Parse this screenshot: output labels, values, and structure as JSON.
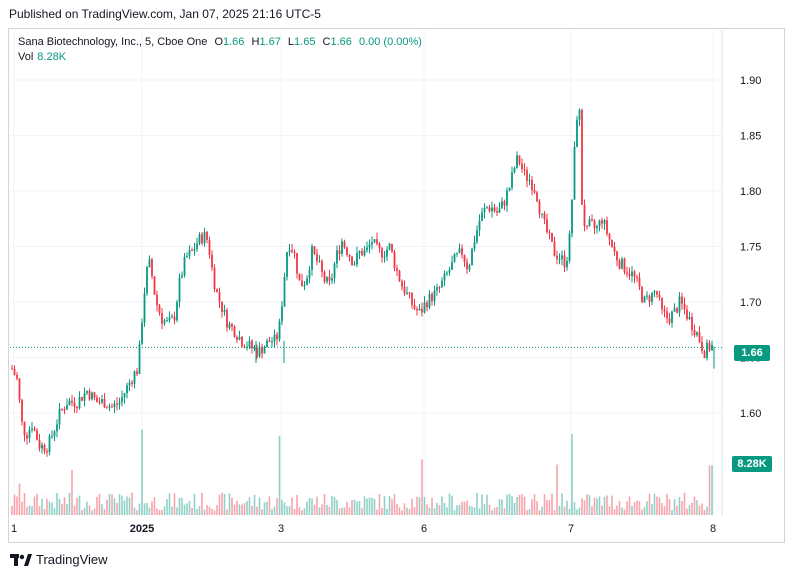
{
  "published": "Published on TradingView.com, Jan 07, 2025 21:16 UTC-5",
  "legend": {
    "symbol": "Sana Biotechnology, Inc., 5, Cboe One",
    "o_label": "O",
    "o": "1.66",
    "h_label": "H",
    "h": "1.67",
    "l_label": "L",
    "l": "1.65",
    "c_label": "C",
    "c": "1.66",
    "change": "0.00 (0.00%)",
    "vol_label": "Vol",
    "vol": "8.28K"
  },
  "price_tag": "1.66",
  "volume_tag": "8.28K",
  "footer": "TradingView",
  "colors": {
    "up": "#089981",
    "down": "#f23645",
    "grid": "#f0f3fa",
    "axis_text": "#131722"
  },
  "chart_data": {
    "type": "candlestick",
    "x_tick_labels": [
      "1",
      "2025",
      "3",
      "6",
      "7",
      "8"
    ],
    "y_tick_labels": [
      "1.60",
      "1.65",
      "1.70",
      "1.75",
      "1.80",
      "1.85",
      "1.90"
    ],
    "ylim": [
      1.545,
      1.935
    ],
    "last_price": 1.66,
    "close_path": [
      {
        "x": 0,
        "c": 1.64
      },
      {
        "x": 5,
        "c": 1.63
      },
      {
        "x": 10,
        "c": 1.59
      },
      {
        "x": 14,
        "c": 1.58
      },
      {
        "x": 20,
        "c": 1.59
      },
      {
        "x": 28,
        "c": 1.57
      },
      {
        "x": 36,
        "c": 1.57
      },
      {
        "x": 42,
        "c": 1.585
      },
      {
        "x": 48,
        "c": 1.6
      },
      {
        "x": 55,
        "c": 1.61
      },
      {
        "x": 65,
        "c": 1.61
      },
      {
        "x": 75,
        "c": 1.62
      },
      {
        "x": 85,
        "c": 1.61
      },
      {
        "x": 93,
        "c": 1.61
      },
      {
        "x": 100,
        "c": 1.605
      },
      {
        "x": 108,
        "c": 1.61
      },
      {
        "x": 116,
        "c": 1.625
      },
      {
        "x": 122,
        "c": 1.635
      },
      {
        "x": 126,
        "c": 1.64
      },
      {
        "x": 130,
        "c": 1.685
      },
      {
        "x": 134,
        "c": 1.725
      },
      {
        "x": 138,
        "c": 1.735
      },
      {
        "x": 144,
        "c": 1.7
      },
      {
        "x": 150,
        "c": 1.685
      },
      {
        "x": 156,
        "c": 1.68
      },
      {
        "x": 162,
        "c": 1.685
      },
      {
        "x": 168,
        "c": 1.72
      },
      {
        "x": 174,
        "c": 1.74
      },
      {
        "x": 180,
        "c": 1.745
      },
      {
        "x": 186,
        "c": 1.755
      },
      {
        "x": 192,
        "c": 1.76
      },
      {
        "x": 196,
        "c": 1.755
      },
      {
        "x": 200,
        "c": 1.73
      },
      {
        "x": 204,
        "c": 1.71
      },
      {
        "x": 210,
        "c": 1.695
      },
      {
        "x": 216,
        "c": 1.68
      },
      {
        "x": 222,
        "c": 1.675
      },
      {
        "x": 230,
        "c": 1.665
      },
      {
        "x": 238,
        "c": 1.66
      },
      {
        "x": 246,
        "c": 1.655
      },
      {
        "x": 252,
        "c": 1.66
      },
      {
        "x": 258,
        "c": 1.665
      },
      {
        "x": 264,
        "c": 1.665
      },
      {
        "x": 268,
        "c": 1.68
      },
      {
        "x": 272,
        "c": 1.72
      },
      {
        "x": 276,
        "c": 1.755
      },
      {
        "x": 282,
        "c": 1.745
      },
      {
        "x": 288,
        "c": 1.715
      },
      {
        "x": 294,
        "c": 1.72
      },
      {
        "x": 300,
        "c": 1.745
      },
      {
        "x": 306,
        "c": 1.735
      },
      {
        "x": 312,
        "c": 1.72
      },
      {
        "x": 318,
        "c": 1.715
      },
      {
        "x": 324,
        "c": 1.74
      },
      {
        "x": 330,
        "c": 1.755
      },
      {
        "x": 336,
        "c": 1.745
      },
      {
        "x": 342,
        "c": 1.735
      },
      {
        "x": 348,
        "c": 1.745
      },
      {
        "x": 354,
        "c": 1.745
      },
      {
        "x": 360,
        "c": 1.755
      },
      {
        "x": 366,
        "c": 1.745
      },
      {
        "x": 372,
        "c": 1.745
      },
      {
        "x": 378,
        "c": 1.75
      },
      {
        "x": 384,
        "c": 1.73
      },
      {
        "x": 390,
        "c": 1.715
      },
      {
        "x": 396,
        "c": 1.705
      },
      {
        "x": 402,
        "c": 1.695
      },
      {
        "x": 408,
        "c": 1.69
      },
      {
        "x": 414,
        "c": 1.7
      },
      {
        "x": 420,
        "c": 1.705
      },
      {
        "x": 426,
        "c": 1.71
      },
      {
        "x": 432,
        "c": 1.72
      },
      {
        "x": 438,
        "c": 1.73
      },
      {
        "x": 444,
        "c": 1.74
      },
      {
        "x": 450,
        "c": 1.745
      },
      {
        "x": 456,
        "c": 1.73
      },
      {
        "x": 462,
        "c": 1.755
      },
      {
        "x": 468,
        "c": 1.775
      },
      {
        "x": 474,
        "c": 1.785
      },
      {
        "x": 480,
        "c": 1.785
      },
      {
        "x": 486,
        "c": 1.78
      },
      {
        "x": 492,
        "c": 1.79
      },
      {
        "x": 498,
        "c": 1.805
      },
      {
        "x": 502,
        "c": 1.82
      },
      {
        "x": 506,
        "c": 1.83
      },
      {
        "x": 512,
        "c": 1.815
      },
      {
        "x": 518,
        "c": 1.81
      },
      {
        "x": 524,
        "c": 1.8
      },
      {
        "x": 530,
        "c": 1.775
      },
      {
        "x": 536,
        "c": 1.76
      },
      {
        "x": 542,
        "c": 1.745
      },
      {
        "x": 548,
        "c": 1.74
      },
      {
        "x": 554,
        "c": 1.735
      },
      {
        "x": 558,
        "c": 1.76
      },
      {
        "x": 561,
        "c": 1.81
      },
      {
        "x": 564,
        "c": 1.86
      },
      {
        "x": 567,
        "c": 1.885
      },
      {
        "x": 570,
        "c": 1.79
      },
      {
        "x": 574,
        "c": 1.76
      },
      {
        "x": 578,
        "c": 1.77
      },
      {
        "x": 584,
        "c": 1.765
      },
      {
        "x": 590,
        "c": 1.775
      },
      {
        "x": 596,
        "c": 1.76
      },
      {
        "x": 602,
        "c": 1.745
      },
      {
        "x": 608,
        "c": 1.735
      },
      {
        "x": 614,
        "c": 1.73
      },
      {
        "x": 620,
        "c": 1.725
      },
      {
        "x": 626,
        "c": 1.715
      },
      {
        "x": 632,
        "c": 1.7
      },
      {
        "x": 638,
        "c": 1.705
      },
      {
        "x": 644,
        "c": 1.71
      },
      {
        "x": 650,
        "c": 1.69
      },
      {
        "x": 656,
        "c": 1.685
      },
      {
        "x": 662,
        "c": 1.69
      },
      {
        "x": 668,
        "c": 1.7
      },
      {
        "x": 674,
        "c": 1.69
      },
      {
        "x": 680,
        "c": 1.68
      },
      {
        "x": 686,
        "c": 1.67
      },
      {
        "x": 692,
        "c": 1.655
      },
      {
        "x": 698,
        "c": 1.66
      }
    ],
    "volume_spikes": [
      {
        "x": 8,
        "v": 0.35
      },
      {
        "x": 61,
        "v": 0.5
      },
      {
        "x": 130,
        "v": 0.95
      },
      {
        "x": 267,
        "v": 0.88
      },
      {
        "x": 410,
        "v": 0.62
      },
      {
        "x": 545,
        "v": 0.56
      },
      {
        "x": 561,
        "v": 0.9
      },
      {
        "x": 699,
        "v": 0.55
      },
      {
        "x": 705,
        "v": 0.6
      }
    ]
  }
}
